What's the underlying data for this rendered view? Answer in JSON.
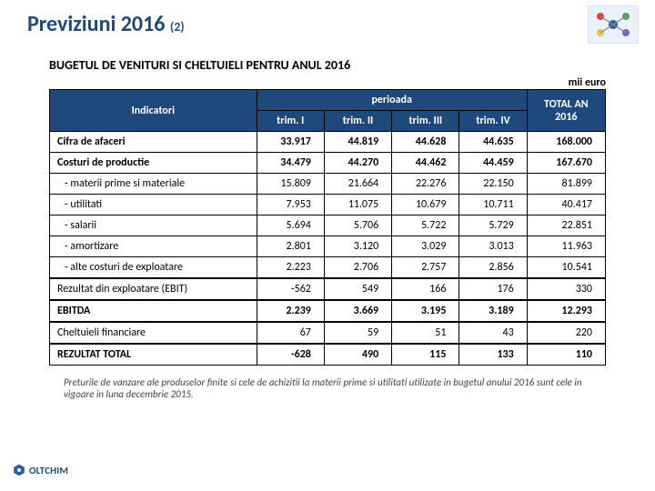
{
  "title_main": "Previziuni 2016 ",
  "title_sub": "(2)",
  "subtitle": "BUGETUL DE VENITURI SI CHELTUIELI PENTRU ANUL 2016",
  "unit_label": "mii euro",
  "header": {
    "indicator": "Indicatori",
    "period": "perioada",
    "q1": "trim. I",
    "q2": "trim. II",
    "q3": "trim. III",
    "q4": "trim. IV",
    "total": "TOTAL AN 2016"
  },
  "rows": [
    {
      "label": "Cifra de afaceri",
      "bold": true,
      "q1": "33.917",
      "q2": "44.819",
      "q3": "44.628",
      "q4": "44.635",
      "total": "168.000"
    },
    {
      "label": "Costuri de productie",
      "bold": true,
      "q1": "34.479",
      "q2": "44.270",
      "q3": "44.462",
      "q4": "44.459",
      "total": "167.670"
    },
    {
      "label": "- materii prime si materiale",
      "sub": true,
      "q1": "15.809",
      "q2": "21.664",
      "q3": "22.276",
      "q4": "22.150",
      "total": "81.899"
    },
    {
      "label": "- utilitati",
      "sub": true,
      "q1": "7.953",
      "q2": "11.075",
      "q3": "10.679",
      "q4": "10.711",
      "total": "40.417"
    },
    {
      "label": "- salarii",
      "sub": true,
      "q1": "5.694",
      "q2": "5.706",
      "q3": "5.722",
      "q4": "5.729",
      "total": "22.851"
    },
    {
      "label": "- amortizare",
      "sub": true,
      "q1": "2.801",
      "q2": "3.120",
      "q3": "3.029",
      "q4": "3.013",
      "total": "11.963"
    },
    {
      "label": "- alte costuri de exploatare",
      "sub": true,
      "q1": "2.223",
      "q2": "2.706",
      "q3": "2.757",
      "q4": "2.856",
      "total": "10.541"
    },
    {
      "label": "Rezultat din  exploatare (EBIT)",
      "spacer": true,
      "q1": "-562",
      "q2": "549",
      "q3": "166",
      "q4": "176",
      "total": "330"
    },
    {
      "label": "EBITDA",
      "bold": true,
      "spacer": true,
      "q1": "2.239",
      "q2": "3.669",
      "q3": "3.195",
      "q4": "3.189",
      "total": "12.293"
    },
    {
      "label": "Cheltuieli financiare",
      "spacer": true,
      "q1": "67",
      "q2": "59",
      "q3": "51",
      "q4": "43",
      "total": "220"
    },
    {
      "label": "REZULTAT TOTAL",
      "bold": true,
      "spacer": true,
      "q1": "-628",
      "q2": "490",
      "q3": "115",
      "q4": "133",
      "total": "110"
    }
  ],
  "footnote": "Preturile de vanzare ale produselor finite si cele de achizitii la materii prime si utilitati utilizate in bugetul anului 2016 sunt cele in vigoare in luna decembrie 2015.",
  "brand": "OLTCHIM",
  "colors": {
    "header_bg": "#1f497d",
    "title_color": "#1f497d"
  }
}
